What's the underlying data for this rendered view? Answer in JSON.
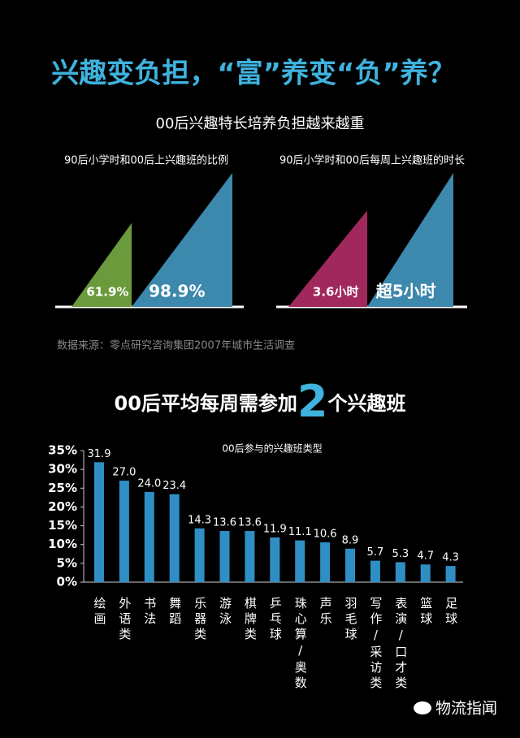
{
  "header": {
    "title": "兴趣变负担，“富”养变“负”养？",
    "subtitle": "00后兴趣特长培养负担越来越重"
  },
  "source": "数据来源：零点研究咨询集团2007年城市生活调查",
  "headline": {
    "before": "00后平均每周需参加",
    "number": "2",
    "after": "个兴趣班"
  },
  "watermark": "物流指闻",
  "chart_data": [
    {
      "type": "triangle",
      "title": "90后小学时和00后上兴趣班的比例",
      "values": [
        61.9,
        98.9
      ],
      "value_labels": [
        "61.9%",
        "98.9%"
      ],
      "colors": [
        "#6b9a3c",
        "#3d88ad"
      ]
    },
    {
      "type": "triangle",
      "title": "90后小学时和00后每周上兴趣班的时长",
      "values": [
        3.6,
        5
      ],
      "value_labels": [
        "3.6小时",
        "超5小时"
      ],
      "colors": [
        "#a0285c",
        "#3d88ad"
      ]
    },
    {
      "type": "bar",
      "title": "00后参与的兴趣班类型",
      "categories": [
        "绘画",
        "外语类",
        "书法",
        "舞蹈",
        "乐器类",
        "游泳",
        "棋牌类",
        "乒乓球",
        "珠心算/奥数",
        "声乐",
        "羽毛球",
        "写作/采访类",
        "表演/口才类",
        "篮球",
        "足球"
      ],
      "values": [
        31.9,
        27.0,
        24.0,
        23.4,
        14.3,
        13.6,
        13.6,
        11.9,
        11.1,
        10.6,
        8.9,
        5.7,
        5.3,
        4.7,
        4.3
      ],
      "value_labels": [
        "31.9",
        "27.0",
        "24.0",
        "23.4",
        "14.3",
        "13.6",
        "13.6",
        "11.9",
        "11.1",
        "10.6",
        "8.9",
        "5.7",
        "5.3",
        "4.7",
        "4.3"
      ],
      "color": "#2f8fc4",
      "ylim": [
        0,
        35
      ],
      "yticks": [
        {
          "value": 0,
          "label": "0%"
        },
        {
          "value": 5,
          "label": "5%"
        },
        {
          "value": 10,
          "label": "10%"
        },
        {
          "value": 15,
          "label": "15%"
        },
        {
          "value": 20,
          "label": "20%"
        },
        {
          "value": 25,
          "label": "25%"
        },
        {
          "value": 30,
          "label": "30%"
        },
        {
          "value": 35,
          "label": "35%"
        }
      ]
    }
  ]
}
